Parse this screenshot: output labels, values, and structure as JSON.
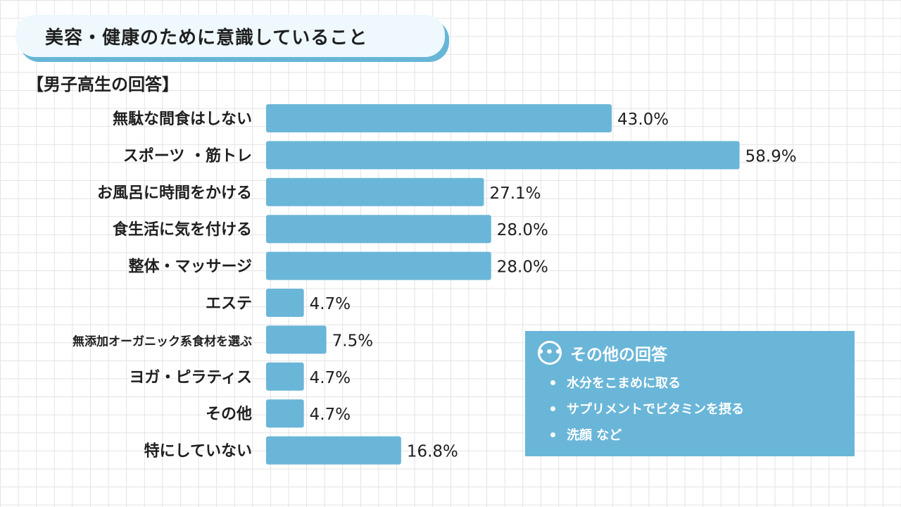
{
  "header": {
    "title": "美容・健康のために意識していること",
    "subtitle": "【男子高生の回答】"
  },
  "colors": {
    "bar": "#6ab6d8",
    "pill_bg": "#eef8fd",
    "pill_shadow": "#67b6d6"
  },
  "chart_data": {
    "type": "bar",
    "orientation": "horizontal",
    "title": "美容・健康のために意識していること",
    "subtitle": "【男子高生の回答】",
    "categories": [
      "無駄な間食はしない",
      "スポーツ ・筋トレ",
      "お風呂に時間をかける",
      "食生活に気を付ける",
      "整体・マッサージ",
      "エステ",
      "無添加オーガニック系食材を選ぶ",
      "ヨガ・ピラティス",
      "その他",
      "特にしていない"
    ],
    "values": [
      43.0,
      58.9,
      27.1,
      28.0,
      28.0,
      4.7,
      7.5,
      4.7,
      4.7,
      16.8
    ],
    "value_labels": [
      "43.0%",
      "58.9%",
      "27.1%",
      "28.0%",
      "28.0%",
      "4.7%",
      "7.5%",
      "4.7%",
      "4.7%",
      "16.8%"
    ],
    "xlim": [
      0,
      60
    ],
    "grid": false,
    "legend": "none"
  },
  "other_answers": {
    "icon": "more-dots-icon",
    "title": "その他の回答",
    "items": [
      "水分をこまめに取る",
      "サプリメントでビタミンを摂る",
      "洗顔 など"
    ]
  }
}
